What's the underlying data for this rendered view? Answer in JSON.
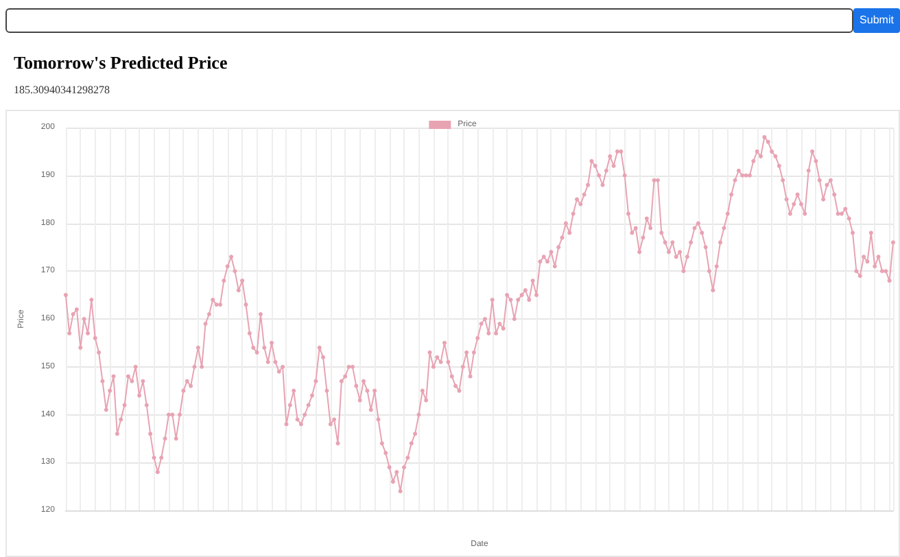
{
  "chart_data": {
    "type": "line",
    "title": "Tomorrow's Predicted Price",
    "subtitle": "185.30940341298278",
    "annotations": [
      "Submit"
    ],
    "xlabel": "Date",
    "ylabel": "Price",
    "legend": "top",
    "grid": true,
    "marker": "circle",
    "line_style": "solid",
    "tick_labels": "y",
    "ylim": [
      120,
      200
    ],
    "yticks": [
      120,
      130,
      140,
      150,
      160,
      170,
      180,
      190,
      200
    ],
    "categories": [
      null,
      null,
      null,
      null,
      null,
      null,
      null,
      null,
      null,
      null,
      null,
      null,
      null,
      null,
      null,
      null,
      null,
      null,
      null,
      null,
      null,
      null,
      null,
      null,
      null,
      null,
      null,
      null,
      null,
      null,
      null,
      null,
      null,
      null,
      null,
      null,
      null,
      null,
      null,
      null,
      null,
      null,
      null,
      null,
      null,
      null,
      null,
      null,
      null,
      null,
      null,
      null,
      null,
      null,
      null,
      null,
      null,
      null,
      null,
      null,
      null,
      null,
      null,
      null,
      null,
      null,
      null,
      null,
      null,
      null,
      null,
      null,
      null,
      null,
      null,
      null,
      null,
      null,
      null,
      null,
      null,
      null,
      null,
      null,
      null,
      null,
      null,
      null,
      null,
      null,
      null,
      null,
      null,
      null,
      null,
      null,
      null,
      null,
      null,
      null,
      null,
      null,
      null,
      null,
      null,
      null,
      null,
      null,
      null,
      null,
      null,
      null,
      null,
      null,
      null,
      null,
      null,
      null,
      null,
      null,
      null,
      null,
      null,
      null,
      null,
      null,
      null,
      null,
      null,
      null,
      null,
      null,
      null,
      null,
      null,
      null,
      null,
      null,
      null,
      null,
      null,
      null,
      null,
      null,
      null,
      null,
      null,
      null,
      null,
      null,
      null,
      null,
      null,
      null,
      null,
      null,
      null,
      null,
      null,
      null,
      null,
      null,
      null,
      null,
      null,
      null,
      null,
      null,
      null,
      null,
      null,
      null,
      null,
      null,
      null,
      null,
      null,
      null,
      null,
      null,
      null,
      null,
      null,
      null,
      null,
      null,
      null,
      null,
      null,
      null,
      null,
      null,
      null,
      null,
      null,
      null,
      null,
      null,
      null,
      null,
      null,
      null,
      null,
      null,
      null,
      null,
      null,
      null,
      null,
      null,
      null,
      null,
      null,
      null,
      null,
      null,
      null,
      null,
      null,
      null,
      null,
      null,
      null,
      null,
      null,
      null
    ],
    "series": [
      {
        "name": "Price",
        "color": "#e8a3b3",
        "values": [
          165,
          157,
          161,
          162,
          154,
          160,
          157,
          164,
          156,
          153,
          147,
          141,
          145,
          148,
          136,
          139,
          142,
          148,
          147,
          150,
          144,
          147,
          142,
          136,
          131,
          128,
          131,
          135,
          140,
          140,
          135,
          140,
          145,
          147,
          146,
          150,
          154,
          150,
          159,
          161,
          164,
          163,
          163,
          168,
          171,
          173,
          170,
          166,
          168,
          163,
          157,
          154,
          153,
          161,
          154,
          151,
          155,
          151,
          149,
          150,
          138,
          142,
          145,
          139,
          138,
          140,
          142,
          144,
          147,
          154,
          152,
          145,
          138,
          139,
          134,
          147,
          148,
          150,
          150,
          146,
          143,
          147,
          145,
          141,
          145,
          139,
          134,
          132,
          129,
          126,
          128,
          124,
          129,
          131,
          134,
          136,
          140,
          145,
          143,
          153,
          150,
          152,
          151,
          155,
          151,
          148,
          146,
          145,
          150,
          153,
          148,
          153,
          156,
          159,
          160,
          157,
          164,
          157,
          159,
          158,
          165,
          164,
          160,
          164,
          165,
          166,
          164,
          168,
          165,
          172,
          173,
          172,
          174,
          171,
          175,
          177,
          180,
          178,
          182,
          185,
          184,
          186,
          188,
          193,
          192,
          190,
          188,
          191,
          194,
          192,
          195,
          195,
          190,
          182,
          178,
          179,
          174,
          177,
          181,
          179,
          189,
          189,
          178,
          176,
          174,
          176,
          173,
          174,
          170,
          173,
          176,
          179,
          180,
          178,
          175,
          170,
          166,
          171,
          176,
          179,
          182,
          186,
          189,
          191,
          190,
          190,
          190,
          193,
          195,
          194,
          198,
          197,
          195,
          194,
          192,
          189,
          185,
          182,
          184,
          186,
          184,
          182,
          191,
          195,
          193,
          189,
          185,
          188,
          189,
          186,
          182,
          182,
          183,
          181,
          178,
          170,
          169,
          173,
          172,
          178,
          171,
          173,
          170,
          170,
          168,
          176
        ]
      }
    ]
  }
}
